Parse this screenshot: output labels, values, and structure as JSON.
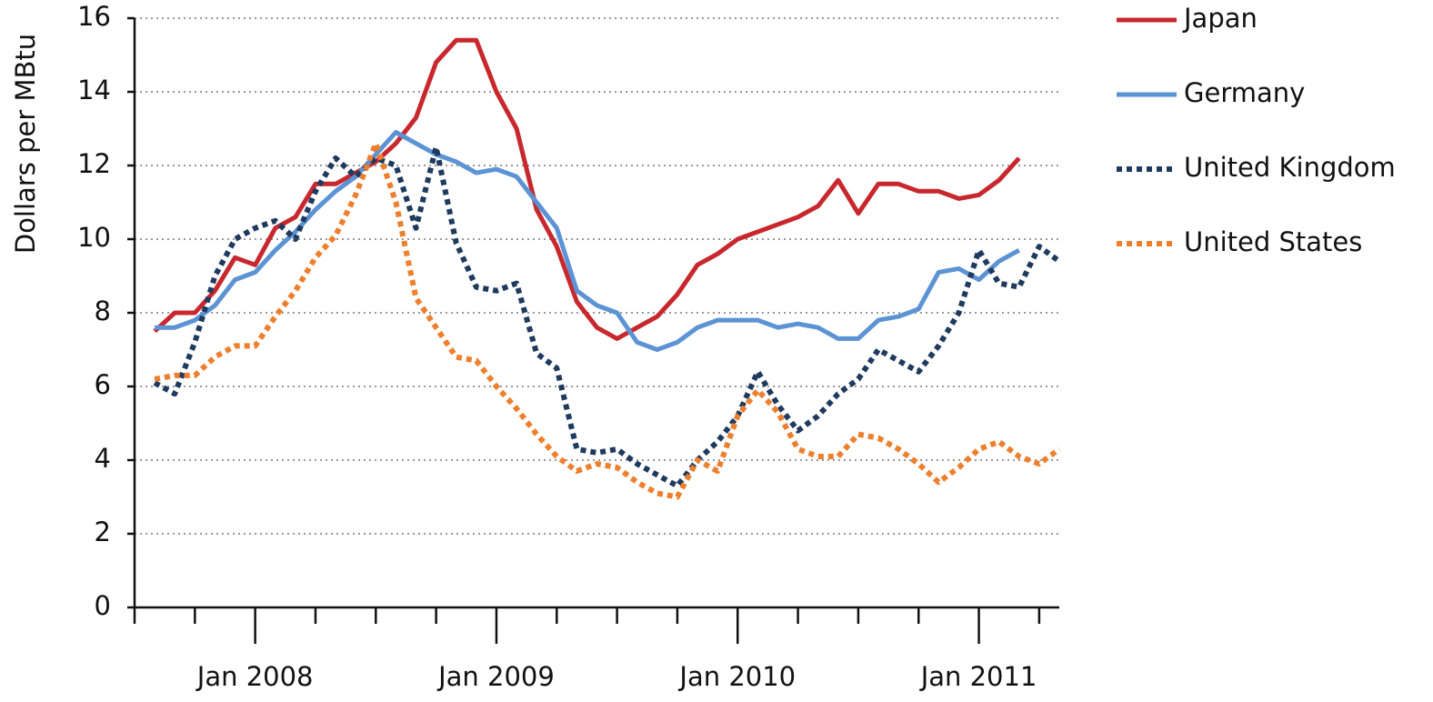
{
  "chart_data": {
    "type": "line",
    "y_label": "Dollars per MBtu",
    "x": [
      "2007-08",
      "2007-09",
      "2007-10",
      "2007-11",
      "2007-12",
      "2008-01",
      "2008-02",
      "2008-03",
      "2008-04",
      "2008-05",
      "2008-06",
      "2008-07",
      "2008-08",
      "2008-09",
      "2008-10",
      "2008-11",
      "2008-12",
      "2009-01",
      "2009-02",
      "2009-03",
      "2009-04",
      "2009-05",
      "2009-06",
      "2009-07",
      "2009-08",
      "2009-09",
      "2009-10",
      "2009-11",
      "2009-12",
      "2010-01",
      "2010-02",
      "2010-03",
      "2010-04",
      "2010-05",
      "2010-06",
      "2010-07",
      "2010-08",
      "2010-09",
      "2010-10",
      "2010-11",
      "2010-12",
      "2011-01",
      "2011-02",
      "2011-03",
      "2011-04",
      "2011-05"
    ],
    "series": [
      {
        "name": "Japan",
        "color": "#c8282d",
        "dash": false,
        "values": [
          7.5,
          8.0,
          8.0,
          8.6,
          9.5,
          9.3,
          10.3,
          10.6,
          11.5,
          11.5,
          11.8,
          12.1,
          12.6,
          13.3,
          14.8,
          15.4,
          15.4,
          14.0,
          13.0,
          10.8,
          9.8,
          8.3,
          7.6,
          7.3,
          7.6,
          7.9,
          8.5,
          9.3,
          9.6,
          10.0,
          10.2,
          10.4,
          10.6,
          10.9,
          11.6,
          10.7,
          11.5,
          11.5,
          11.3,
          11.3,
          11.1,
          11.2,
          11.6,
          12.2,
          null,
          null
        ]
      },
      {
        "name": "Germany",
        "color": "#5b93d4",
        "dash": false,
        "values": [
          7.6,
          7.6,
          7.8,
          8.2,
          8.9,
          9.1,
          9.7,
          10.2,
          10.8,
          11.3,
          11.7,
          12.3,
          12.9,
          12.6,
          12.3,
          12.1,
          11.8,
          11.9,
          11.7,
          11.0,
          10.3,
          8.6,
          8.2,
          8.0,
          7.2,
          7.0,
          7.2,
          7.6,
          7.8,
          7.8,
          7.8,
          7.6,
          7.7,
          7.6,
          7.3,
          7.3,
          7.8,
          7.9,
          8.1,
          9.1,
          9.2,
          8.9,
          9.4,
          9.7,
          null,
          null
        ]
      },
      {
        "name": "United Kingdom",
        "color": "#1f3a5f",
        "dash": true,
        "values": [
          6.1,
          5.8,
          7.2,
          9.0,
          10.0,
          10.3,
          10.5,
          10.0,
          11.3,
          12.2,
          11.7,
          12.2,
          12.0,
          10.3,
          12.5,
          9.9,
          8.7,
          8.6,
          8.8,
          6.9,
          6.5,
          4.3,
          4.2,
          4.3,
          3.9,
          3.6,
          3.3,
          4.0,
          4.5,
          5.2,
          6.4,
          5.5,
          4.8,
          5.2,
          5.8,
          6.2,
          7.0,
          6.7,
          6.4,
          7.1,
          8.0,
          9.7,
          8.8,
          8.7,
          9.8,
          9.4
        ]
      },
      {
        "name": "United States",
        "color": "#ee7f2d",
        "dash": true,
        "values": [
          6.2,
          6.3,
          6.3,
          6.8,
          7.1,
          7.1,
          7.9,
          8.6,
          9.5,
          10.1,
          11.2,
          12.6,
          11.0,
          8.4,
          7.6,
          6.8,
          6.7,
          6.0,
          5.4,
          4.7,
          4.1,
          3.7,
          3.9,
          3.8,
          3.4,
          3.1,
          3.0,
          4.0,
          3.7,
          5.2,
          5.9,
          5.3,
          4.3,
          4.1,
          4.1,
          4.7,
          4.6,
          4.3,
          3.9,
          3.4,
          3.8,
          4.3,
          4.5,
          4.1,
          3.9,
          4.3
        ]
      }
    ],
    "xlim": [
      "2007-07",
      "2011-05"
    ],
    "xticks": [
      {
        "value": "2008-01",
        "label": "Jan 2008"
      },
      {
        "value": "2009-01",
        "label": "Jan 2009"
      },
      {
        "value": "2010-01",
        "label": "Jan 2010"
      },
      {
        "value": "2011-01",
        "label": "Jan 2011"
      }
    ],
    "xminor_ticks": [
      "2007-07",
      "2007-10",
      "2008-04",
      "2008-07",
      "2008-10",
      "2009-04",
      "2009-07",
      "2009-10",
      "2010-04",
      "2010-07",
      "2010-10",
      "2011-04"
    ],
    "ylim": [
      0,
      16
    ],
    "yticks": [
      0,
      2,
      4,
      6,
      8,
      10,
      12,
      14,
      16
    ],
    "grid": true,
    "legend": "right"
  }
}
